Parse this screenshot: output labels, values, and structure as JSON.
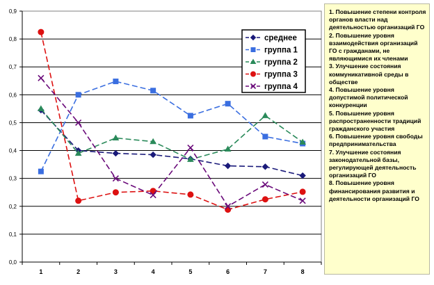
{
  "chart_data": {
    "type": "line",
    "categories": [
      "1",
      "2",
      "3",
      "4",
      "5",
      "6",
      "7",
      "8"
    ],
    "ylim": [
      0,
      0.9
    ],
    "y_ticks": [
      "0,0",
      "0,1",
      "0,2",
      "0,3",
      "0,4",
      "0,5",
      "0,6",
      "0,7",
      "0,8",
      "0,9"
    ],
    "series": [
      {
        "name": "среднее",
        "color": "#1a1a7a",
        "marker": "diamond",
        "dash": "8,4",
        "values": [
          0.545,
          0.4,
          0.39,
          0.385,
          0.37,
          0.345,
          0.342,
          0.31
        ]
      },
      {
        "name": "группа 1",
        "color": "#3a6ee0",
        "marker": "square",
        "dash": "8,4",
        "values": [
          0.325,
          0.6,
          0.648,
          0.615,
          0.525,
          0.568,
          0.45,
          0.425
        ]
      },
      {
        "name": "группа 2",
        "color": "#2a8a5a",
        "marker": "triangle",
        "dash": "8,4",
        "values": [
          0.55,
          0.39,
          0.445,
          0.432,
          0.368,
          0.405,
          0.525,
          0.43
        ]
      },
      {
        "name": "группа 3",
        "color": "#dd1111",
        "marker": "circle",
        "dash": "8,4",
        "values": [
          0.825,
          0.22,
          0.25,
          0.255,
          0.242,
          0.188,
          0.225,
          0.252
        ]
      },
      {
        "name": "группа 4",
        "color": "#6a0a7a",
        "marker": "x",
        "dash": "8,4",
        "values": [
          0.66,
          0.5,
          0.3,
          0.24,
          0.41,
          0.2,
          0.278,
          0.22
        ]
      }
    ],
    "grid": true,
    "legend_position": "top-right"
  },
  "notes": [
    "1. Повышение степени контроля органов власти над деятельностью организаций ГО",
    "2. Повышение уровня взаимодействия организаций ГО с гражданами, не являющимися их членами",
    "3. Улучшение состояния коммуникативной среды в обществе",
    "4. Повышение уровня допустимой политической конкуренции",
    "5. Повышение уровня распространенности традиций гражданского участия",
    "6. Повышение уровня свободы предпринимательства",
    "7. Улучшение состояния законодательной базы, регулирующей деятельность организаций ГО",
    "8. Повышение уровня финансирования развития и деятельности организаций ГО"
  ]
}
